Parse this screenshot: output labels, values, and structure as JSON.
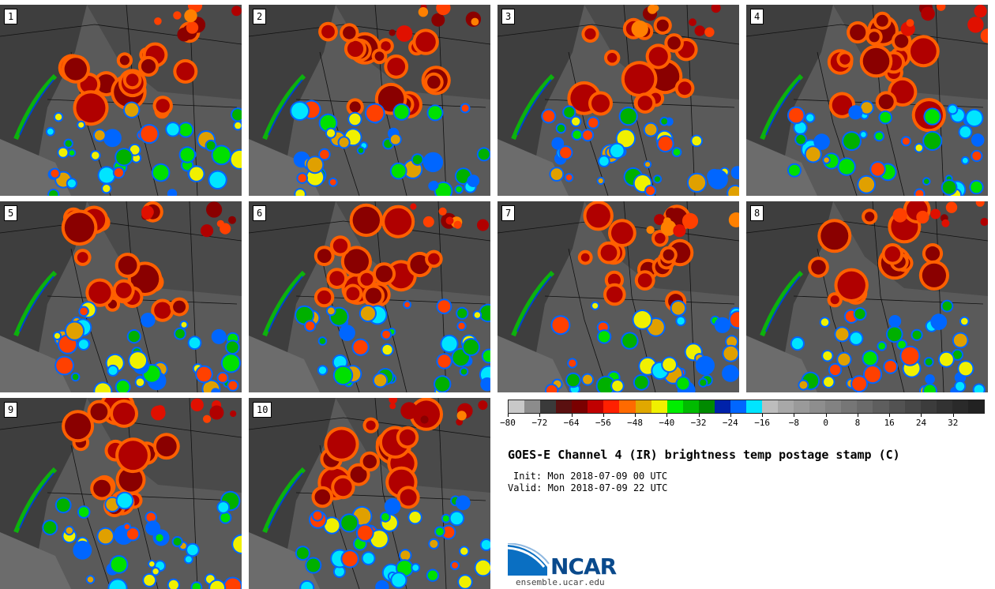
{
  "panels": [
    {
      "label": "1"
    },
    {
      "label": "2"
    },
    {
      "label": "3"
    },
    {
      "label": "4"
    },
    {
      "label": "5"
    },
    {
      "label": "6"
    },
    {
      "label": "7"
    },
    {
      "label": "8"
    },
    {
      "label": "9"
    },
    {
      "label": "10"
    }
  ],
  "colorbar": {
    "colors": [
      "#c8c8c8",
      "#8c8c8c",
      "#3a3a3a",
      "#5a1010",
      "#7a0000",
      "#c00000",
      "#ff2000",
      "#ff6a00",
      "#e0a800",
      "#f0f000",
      "#00ee00",
      "#00bb00",
      "#008a00",
      "#0022aa",
      "#0066ff",
      "#00e5ff",
      "#bdbdbd",
      "#a8a8a8",
      "#9a9a9a",
      "#8e8e8e",
      "#828282",
      "#767676",
      "#6a6a6a",
      "#5e5e5e",
      "#525252",
      "#474747",
      "#3c3c3c",
      "#323232",
      "#2a2a2a",
      "#222222"
    ],
    "min": -80,
    "max": 40,
    "ticks": [
      "−80",
      "−72",
      "−64",
      "−56",
      "−48",
      "−40",
      "−32",
      "−24",
      "−16",
      "−8",
      "0",
      "8",
      "16",
      "24",
      "32"
    ],
    "tick_values": [
      -80,
      -72,
      -64,
      -56,
      -48,
      -40,
      -32,
      -24,
      -16,
      -8,
      0,
      8,
      16,
      24,
      32
    ]
  },
  "title": "GOES-E Channel 4 (IR) brightness temp postage stamp (C)",
  "init": "Init: Mon 2018-07-09 00 UTC",
  "valid": "Valid: Mon 2018-07-09 22 UTC",
  "logo": {
    "text": "NCAR",
    "url_text": "ensemble.ucar.edu"
  }
}
